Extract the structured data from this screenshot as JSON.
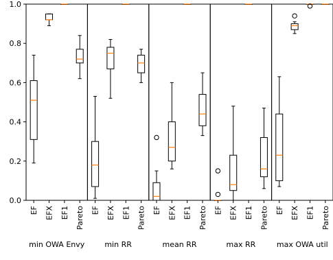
{
  "chart_data": {
    "type": "boxplot",
    "y_axis": {
      "range": [
        0.0,
        1.0
      ],
      "ticks": [
        0.0,
        0.2,
        0.4,
        0.6,
        0.8,
        1.0
      ],
      "tick_labels": [
        "0.0",
        "0.2",
        "0.4",
        "0.6",
        "0.8",
        "1.0"
      ]
    },
    "categories": [
      "EF",
      "EFX",
      "EF1",
      "Pareto"
    ],
    "colors": {
      "box": "#000000",
      "median": "#ff7f0e",
      "flier": "#000000"
    },
    "panels": [
      {
        "label": "min OWA Envy",
        "boxes": [
          {
            "category": "EF",
            "whislo": 0.19,
            "q1": 0.31,
            "med": 0.51,
            "q3": 0.61,
            "whishi": 0.74,
            "fliers": []
          },
          {
            "category": "EFX",
            "whislo": 0.89,
            "q1": 0.92,
            "med": 0.92,
            "q3": 0.95,
            "whishi": 0.95,
            "fliers": []
          },
          {
            "category": "EF1",
            "whislo": 1.0,
            "q1": 1.0,
            "med": 1.0,
            "q3": 1.0,
            "whishi": 1.0,
            "fliers": []
          },
          {
            "category": "Pareto",
            "whislo": 0.62,
            "q1": 0.7,
            "med": 0.72,
            "q3": 0.77,
            "whishi": 0.84,
            "fliers": []
          }
        ]
      },
      {
        "label": "min RR",
        "boxes": [
          {
            "category": "EF",
            "whislo": 0.01,
            "q1": 0.07,
            "med": 0.18,
            "q3": 0.3,
            "whishi": 0.53,
            "fliers": []
          },
          {
            "category": "EFX",
            "whislo": 0.52,
            "q1": 0.67,
            "med": 0.75,
            "q3": 0.78,
            "whishi": 0.82,
            "fliers": []
          },
          {
            "category": "EF1",
            "whislo": 1.0,
            "q1": 1.0,
            "med": 1.0,
            "q3": 1.0,
            "whishi": 1.0,
            "fliers": []
          },
          {
            "category": "Pareto",
            "whislo": 0.6,
            "q1": 0.65,
            "med": 0.7,
            "q3": 0.74,
            "whishi": 0.77,
            "fliers": []
          }
        ]
      },
      {
        "label": "mean RR",
        "boxes": [
          {
            "category": "EF",
            "whislo": 0.0,
            "q1": 0.0,
            "med": 0.02,
            "q3": 0.09,
            "whishi": 0.15,
            "fliers": [
              0.32
            ]
          },
          {
            "category": "EFX",
            "whislo": 0.16,
            "q1": 0.2,
            "med": 0.27,
            "q3": 0.4,
            "whishi": 0.6,
            "fliers": []
          },
          {
            "category": "EF1",
            "whislo": 1.0,
            "q1": 1.0,
            "med": 1.0,
            "q3": 1.0,
            "whishi": 1.0,
            "fliers": []
          },
          {
            "category": "Pareto",
            "whislo": 0.33,
            "q1": 0.38,
            "med": 0.44,
            "q3": 0.54,
            "whishi": 0.65,
            "fliers": []
          }
        ]
      },
      {
        "label": "max RR",
        "boxes": [
          {
            "category": "EF",
            "whislo": 0.0,
            "q1": 0.0,
            "med": 0.0,
            "q3": 0.0,
            "whishi": 0.0,
            "fliers": [
              0.15,
              0.03
            ]
          },
          {
            "category": "EFX",
            "whislo": 0.0,
            "q1": 0.05,
            "med": 0.08,
            "q3": 0.23,
            "whishi": 0.48,
            "fliers": []
          },
          {
            "category": "EF1",
            "whislo": 1.0,
            "q1": 1.0,
            "med": 1.0,
            "q3": 1.0,
            "whishi": 1.0,
            "fliers": []
          },
          {
            "category": "Pareto",
            "whislo": 0.06,
            "q1": 0.12,
            "med": 0.16,
            "q3": 0.32,
            "whishi": 0.47,
            "fliers": []
          }
        ]
      },
      {
        "label": "max OWA util",
        "boxes": [
          {
            "category": "EF",
            "whislo": 0.07,
            "q1": 0.1,
            "med": 0.23,
            "q3": 0.44,
            "whishi": 0.63,
            "fliers": []
          },
          {
            "category": "EFX",
            "whislo": 0.85,
            "q1": 0.87,
            "med": 0.89,
            "q3": 0.9,
            "whishi": 0.91,
            "fliers": [
              0.94
            ]
          },
          {
            "category": "EF1",
            "whislo": 1.0,
            "q1": 1.0,
            "med": 1.0,
            "q3": 1.0,
            "whishi": 1.0,
            "fliers": [
              0.99
            ]
          },
          {
            "category": "Pareto",
            "whislo": 1.0,
            "q1": 1.0,
            "med": 1.0,
            "q3": 1.0,
            "whishi": 1.0,
            "fliers": []
          }
        ]
      }
    ]
  }
}
